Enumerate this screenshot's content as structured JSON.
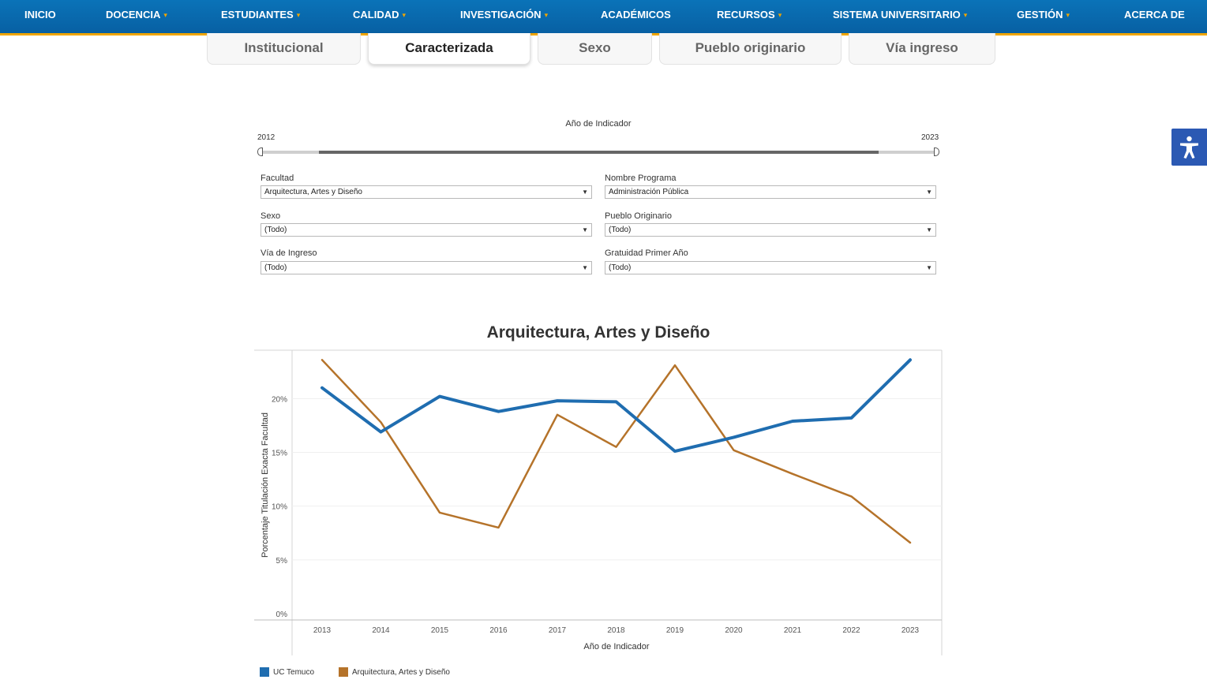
{
  "nav": {
    "items": [
      {
        "label": "INICIO",
        "dropdown": false
      },
      {
        "label": "DOCENCIA",
        "dropdown": true
      },
      {
        "label": "ESTUDIANTES",
        "dropdown": true
      },
      {
        "label": "CALIDAD",
        "dropdown": true
      },
      {
        "label": "INVESTIGACIÓN",
        "dropdown": true
      },
      {
        "label": "ACADÉMICOS",
        "dropdown": false
      },
      {
        "label": "RECURSOS",
        "dropdown": true
      },
      {
        "label": "SISTEMA UNIVERSITARIO",
        "dropdown": true
      },
      {
        "label": "GESTIÓN",
        "dropdown": true
      },
      {
        "label": "ACERCA DE",
        "dropdown": false
      }
    ],
    "chevron": "▾"
  },
  "tabs": [
    {
      "label": "Institucional",
      "active": false
    },
    {
      "label": "Caracterizada",
      "active": true
    },
    {
      "label": "Sexo",
      "active": false
    },
    {
      "label": "Pueblo originario",
      "active": false
    },
    {
      "label": "Vía ingreso",
      "active": false
    }
  ],
  "slider": {
    "title": "Año de Indicador",
    "min_label": "2012",
    "max_label": "2023"
  },
  "filters": {
    "facultad": {
      "label": "Facultad",
      "value": "Arquitectura, Artes y Diseño"
    },
    "programa": {
      "label": "Nombre Programa",
      "value": "Administración Pública"
    },
    "sexo": {
      "label": "Sexo",
      "value": "(Todo)"
    },
    "pueblo": {
      "label": "Pueblo Originario",
      "value": "(Todo)"
    },
    "via": {
      "label": "Vía de Ingreso",
      "value": "(Todo)"
    },
    "gratuidad": {
      "label": "Gratuidad Primer Año",
      "value": "(Todo)"
    },
    "arrow": "▼"
  },
  "chart_data": {
    "type": "line",
    "title": "Arquitectura, Artes y Diseño",
    "xlabel": "Año de Indicador",
    "ylabel": "Porcentaje Titulación Exacta Facultad",
    "x": [
      "2013",
      "2014",
      "2015",
      "2016",
      "2017",
      "2018",
      "2019",
      "2020",
      "2021",
      "2022",
      "2023"
    ],
    "ylim": [
      0,
      24.5
    ],
    "yticks": [
      0,
      5,
      10,
      15,
      20
    ],
    "ytick_labels": [
      "0%",
      "5%",
      "10%",
      "15%",
      "20%"
    ],
    "grid": true,
    "legend_position": "bottom-left",
    "series": [
      {
        "name": "UC Temuco",
        "color": "#1f6db0",
        "values": [
          21.0,
          16.9,
          20.2,
          18.8,
          19.8,
          19.7,
          15.1,
          16.4,
          17.9,
          18.2,
          23.6
        ]
      },
      {
        "name": "Arquitectura, Artes y Diseño",
        "color": "#b5732a",
        "values": [
          23.6,
          17.8,
          9.4,
          8.0,
          18.5,
          15.5,
          23.1,
          15.2,
          13.0,
          10.9,
          6.6
        ]
      }
    ]
  },
  "accessibility": {
    "icon": "accessibility-icon"
  }
}
